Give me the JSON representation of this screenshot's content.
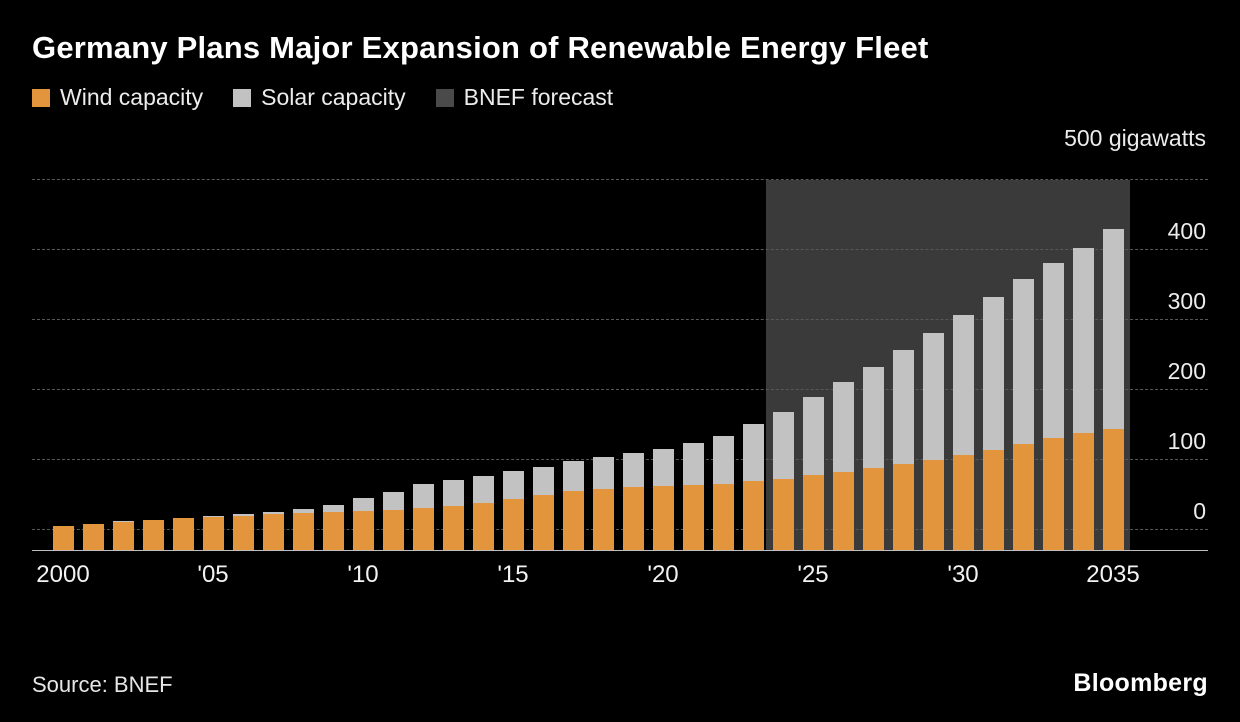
{
  "header": {
    "title": "Germany Plans Major Expansion of Renewable Energy Fleet"
  },
  "legend": [
    {
      "label": "Wind capacity",
      "color": "#E2953C"
    },
    {
      "label": "Solar capacity",
      "color": "#C2C2C2"
    },
    {
      "label": "BNEF forecast",
      "color": "#4A4A4A"
    }
  ],
  "footer": {
    "source": "Source: BNEF",
    "brand": "Bloomberg"
  },
  "chart_data": {
    "type": "bar",
    "stacked": true,
    "title": "Germany Plans Major Expansion of Renewable Energy Fleet",
    "unit_label": "500 gigawatts",
    "ylabel": "gigawatts",
    "ylim": [
      0,
      500
    ],
    "yticks": [
      0,
      100,
      200,
      300,
      400
    ],
    "gridline_values": [
      0,
      100,
      200,
      300,
      400,
      500
    ],
    "grid": "dashed-horizontal",
    "legend_position": "top-left",
    "forecast_start": 2024,
    "forecast_region_color": "#3A3A3A",
    "x": [
      2000,
      2001,
      2002,
      2003,
      2004,
      2005,
      2006,
      2007,
      2008,
      2009,
      2010,
      2011,
      2012,
      2013,
      2014,
      2015,
      2016,
      2017,
      2018,
      2019,
      2020,
      2021,
      2022,
      2023,
      2024,
      2025,
      2026,
      2027,
      2028,
      2029,
      2030,
      2031,
      2032,
      2033,
      2034,
      2035
    ],
    "xticks": [
      {
        "year": 2000,
        "label": "2000"
      },
      {
        "year": 2005,
        "label": "'05"
      },
      {
        "year": 2010,
        "label": "'10"
      },
      {
        "year": 2015,
        "label": "'15"
      },
      {
        "year": 2020,
        "label": "'20"
      },
      {
        "year": 2025,
        "label": "'25"
      },
      {
        "year": 2030,
        "label": "'30"
      },
      {
        "year": 2035,
        "label": "2035"
      }
    ],
    "series": [
      {
        "name": "Wind capacity",
        "color": "#E2953C",
        "values": [
          6,
          8.8,
          12,
          14.6,
          16.6,
          18.4,
          20.6,
          22.2,
          23.9,
          25.7,
          27.2,
          29,
          31.3,
          34.3,
          39.2,
          44.9,
          49.9,
          55.9,
          59.3,
          61.2,
          62.7,
          64.5,
          66.3,
          69.5,
          73,
          78,
          83,
          88,
          94,
          100,
          107,
          115,
          123,
          131,
          138,
          145
        ]
      },
      {
        "name": "Solar capacity",
        "color": "#C2C2C2",
        "values": [
          0.1,
          0.2,
          0.3,
          0.4,
          1.1,
          2.1,
          2.9,
          4.2,
          6.1,
          10.6,
          18,
          25.9,
          34.1,
          36.7,
          37.9,
          39.2,
          40.7,
          42.3,
          45.2,
          48.9,
          53.7,
          59.4,
          67.5,
          82.6,
          95,
          112,
          128,
          145,
          163,
          182,
          200,
          218,
          235,
          250,
          265,
          285
        ]
      }
    ]
  }
}
